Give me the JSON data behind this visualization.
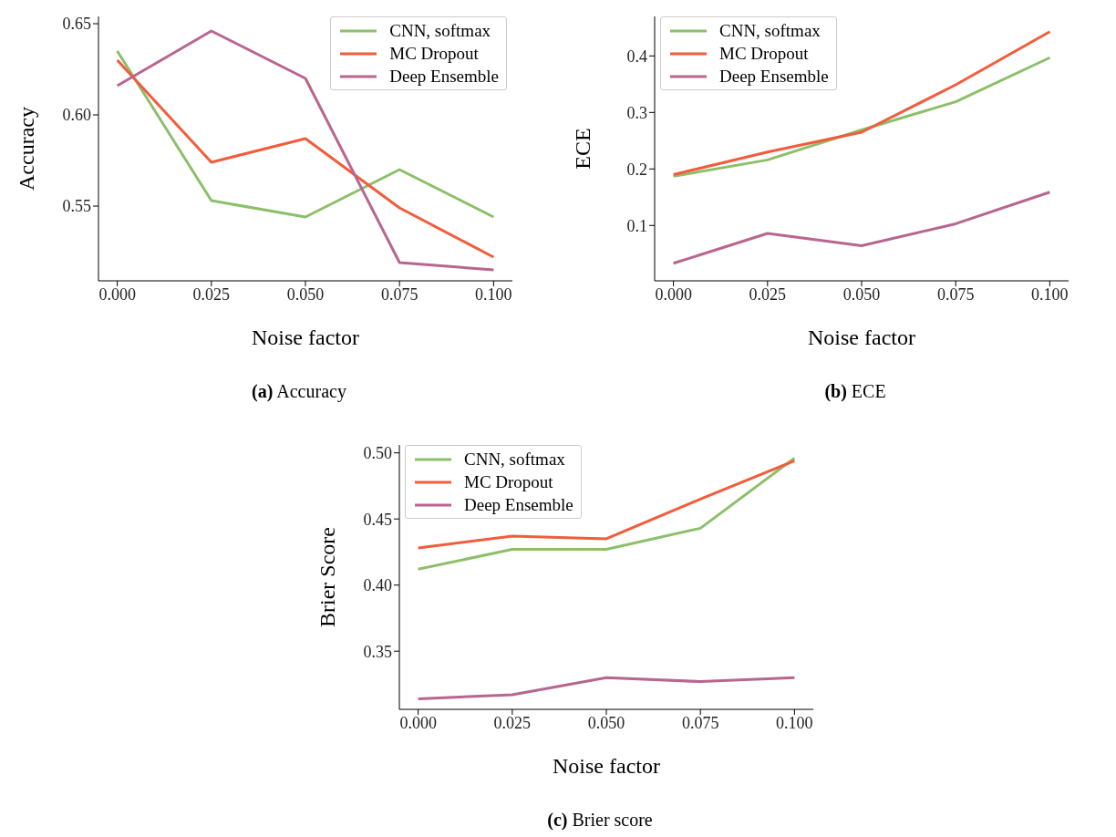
{
  "chart_data": [
    {
      "type": "line",
      "annotations": [
        "(a) Accuracy"
      ],
      "xlabel": "Noise factor",
      "ylabel": "Accuracy",
      "x": [
        0,
        0.025,
        0.05,
        0.075,
        0.1
      ],
      "series": [
        {
          "name": "CNN, softmax",
          "color": "#8cbf6a",
          "values": [
            0.635,
            0.553,
            0.544,
            0.57,
            0.544
          ]
        },
        {
          "name": "MC Dropout",
          "color": "#f25c3c",
          "values": [
            0.63,
            0.574,
            0.587,
            0.549,
            0.522
          ]
        },
        {
          "name": "Deep Ensemble",
          "color": "#b8658f",
          "values": [
            0.616,
            0.646,
            0.62,
            0.519,
            0.515
          ]
        }
      ],
      "xlim": [
        -0.005,
        0.105
      ],
      "xticks": [
        {
          "value": 0,
          "label": "0.000"
        },
        {
          "value": 0.025,
          "label": "0.025"
        },
        {
          "value": 0.05,
          "label": "0.050"
        },
        {
          "value": 0.075,
          "label": "0.075"
        },
        {
          "value": 0.1,
          "label": "0.100"
        }
      ],
      "ylim": [
        0.509,
        0.654
      ],
      "yticks": [
        0.55,
        {
          "value": 0.6,
          "label": "0.60"
        },
        0.65
      ],
      "grid": false,
      "legend": "top right",
      "marker": "none",
      "line_style": "solid"
    },
    {
      "type": "line",
      "annotations": [
        "(b) ECE"
      ],
      "xlabel": "Noise factor",
      "ylabel": "ECE",
      "x": [
        0,
        0.025,
        0.05,
        0.075,
        0.1
      ],
      "series": [
        {
          "name": "CNN, softmax",
          "color": "#8cbf6a",
          "values": [
            0.187,
            0.216,
            0.269,
            0.319,
            0.397
          ]
        },
        {
          "name": "MC Dropout",
          "color": "#f25c3c",
          "values": [
            0.19,
            0.23,
            0.265,
            0.349,
            0.443
          ]
        },
        {
          "name": "Deep Ensemble",
          "color": "#b8658f",
          "values": [
            0.033,
            0.086,
            0.064,
            0.103,
            0.159
          ]
        }
      ],
      "xlim": [
        -0.005,
        0.105
      ],
      "xticks": [
        {
          "value": 0,
          "label": "0.000"
        },
        {
          "value": 0.025,
          "label": "0.025"
        },
        {
          "value": 0.05,
          "label": "0.050"
        },
        {
          "value": 0.075,
          "label": "0.075"
        },
        {
          "value": 0.1,
          "label": "0.100"
        }
      ],
      "ylim": [
        0.002,
        0.47
      ],
      "yticks": [
        0.1,
        0.2,
        0.3,
        0.4
      ],
      "grid": false,
      "legend": "top left",
      "marker": "none",
      "line_style": "solid"
    },
    {
      "type": "line",
      "annotations": [
        "(c) Brier score"
      ],
      "xlabel": "Noise factor",
      "ylabel": "Brier Score",
      "x": [
        0,
        0.025,
        0.05,
        0.075,
        0.1
      ],
      "series": [
        {
          "name": "CNN, softmax",
          "color": "#8cbf6a",
          "values": [
            0.412,
            0.427,
            0.427,
            0.443,
            0.496
          ]
        },
        {
          "name": "MC Dropout",
          "color": "#f25c3c",
          "values": [
            0.428,
            0.437,
            0.435,
            0.465,
            0.494
          ]
        },
        {
          "name": "Deep Ensemble",
          "color": "#b8658f",
          "values": [
            0.314,
            0.317,
            0.33,
            0.327,
            0.33
          ]
        }
      ],
      "xlim": [
        -0.005,
        0.105
      ],
      "xticks": [
        {
          "value": 0,
          "label": "0.000"
        },
        {
          "value": 0.025,
          "label": "0.025"
        },
        {
          "value": 0.05,
          "label": "0.050"
        },
        {
          "value": 0.075,
          "label": "0.075"
        },
        {
          "value": 0.1,
          "label": "0.100"
        }
      ],
      "ylim": [
        0.306,
        0.506
      ],
      "yticks": [
        {
          "value": 0.35,
          "label": "0.35"
        },
        {
          "value": 0.4,
          "label": "0.40"
        },
        0.45,
        {
          "value": 0.5,
          "label": "0.50"
        }
      ],
      "grid": false,
      "legend": "top left",
      "marker": "none",
      "line_style": "solid"
    }
  ]
}
